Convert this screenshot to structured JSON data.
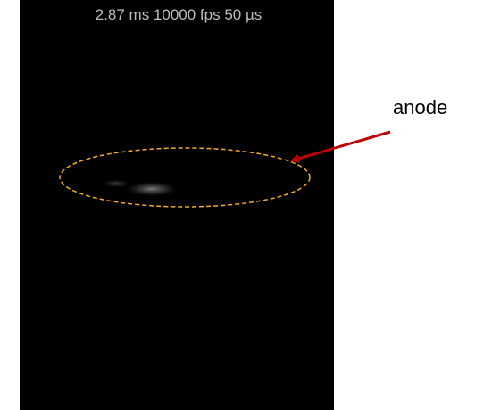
{
  "frame": {
    "caption": "2.87 ms 10000 fps 50 µs"
  },
  "annotation": {
    "label": "anode"
  }
}
